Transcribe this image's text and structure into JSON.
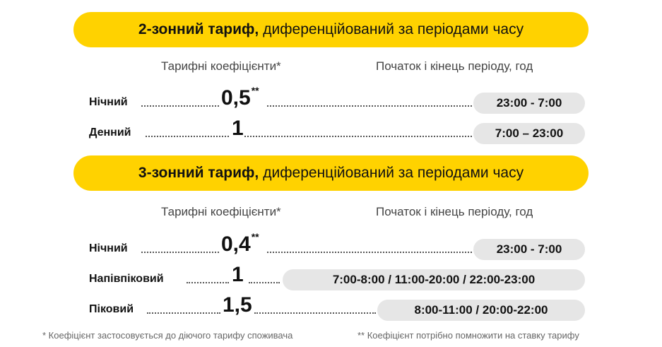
{
  "sections": [
    {
      "title_bold": "2-зонний тариф,",
      "title_rest": "диференційований за періодами часу",
      "col_coef": "Тарифні коефіцієнти*",
      "col_period": "Початок і кінець періоду, год",
      "rows": [
        {
          "label": "Нічний",
          "coef": "0,5",
          "mark": "**",
          "period": "23:00 - 7:00"
        },
        {
          "label": "Денний",
          "coef": "1",
          "mark": "",
          "period": "7:00 – 23:00"
        }
      ]
    },
    {
      "title_bold": "3-зонний тариф,",
      "title_rest": "диференційований за періодами часу",
      "col_coef": "Тарифні коефіцієнти*",
      "col_period": "Початок і кінець періоду, год",
      "rows": [
        {
          "label": "Нічний",
          "coef": "0,4",
          "mark": "**",
          "period": "23:00 - 7:00"
        },
        {
          "label": "Напівпіковий",
          "coef": "1",
          "mark": "",
          "period": "7:00-8:00 / 11:00-20:00 / 22:00-23:00"
        },
        {
          "label": "Піковий",
          "coef": "1,5",
          "mark": "",
          "period": "8:00-11:00 / 20:00-22:00"
        }
      ]
    }
  ],
  "footnotes": {
    "note1": "* Коефіцієнт застосовується до діючого тарифу споживача",
    "note2": "** Коефіцієнт потрібно помножити на ставку тарифу"
  },
  "colors": {
    "accent": "#ffd200",
    "pill": "#e6e6e6"
  }
}
